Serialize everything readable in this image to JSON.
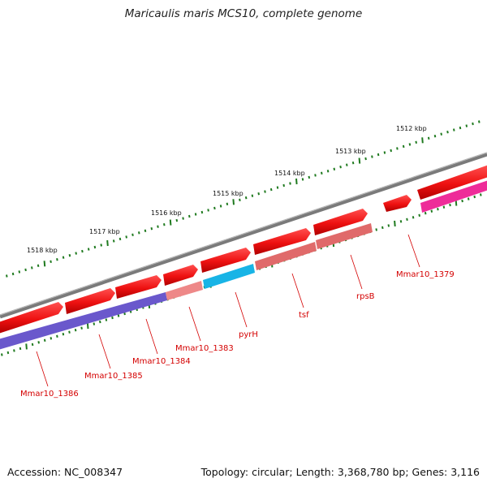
{
  "title": "Maricaulis maris MCS10, complete genome",
  "footer": {
    "accession": "Accession: NC_008347",
    "summary": "Topology: circular; Length: 3,368,780 bp; Genes: 3,116"
  },
  "colors": {
    "backbone": "#7a7a7a",
    "forward_gene": "#ee1111",
    "tick": "#1f7a1f",
    "label": "#d40000"
  },
  "kbp_labels": [
    "1518 kbp",
    "1517 kbp",
    "1516 kbp",
    "1515 kbp",
    "1514 kbp",
    "1513 kbp",
    "1512 kbp"
  ],
  "genes": [
    {
      "name": "Mmar10_1386",
      "color": "#6a58cc"
    },
    {
      "name": "Mmar10_1385",
      "color": "#6a58cc"
    },
    {
      "name": "Mmar10_1384",
      "color": "#6a58cc"
    },
    {
      "name": "Mmar10_1383",
      "color": "#ee8888"
    },
    {
      "name": "pyrH",
      "color": "#18b4e6"
    },
    {
      "name": "tsf",
      "color": "#e06a6a"
    },
    {
      "name": "rpsB",
      "color": "#e06a6a"
    },
    {
      "name": "Mmar10_1379",
      "color": "#ee2c99"
    }
  ]
}
